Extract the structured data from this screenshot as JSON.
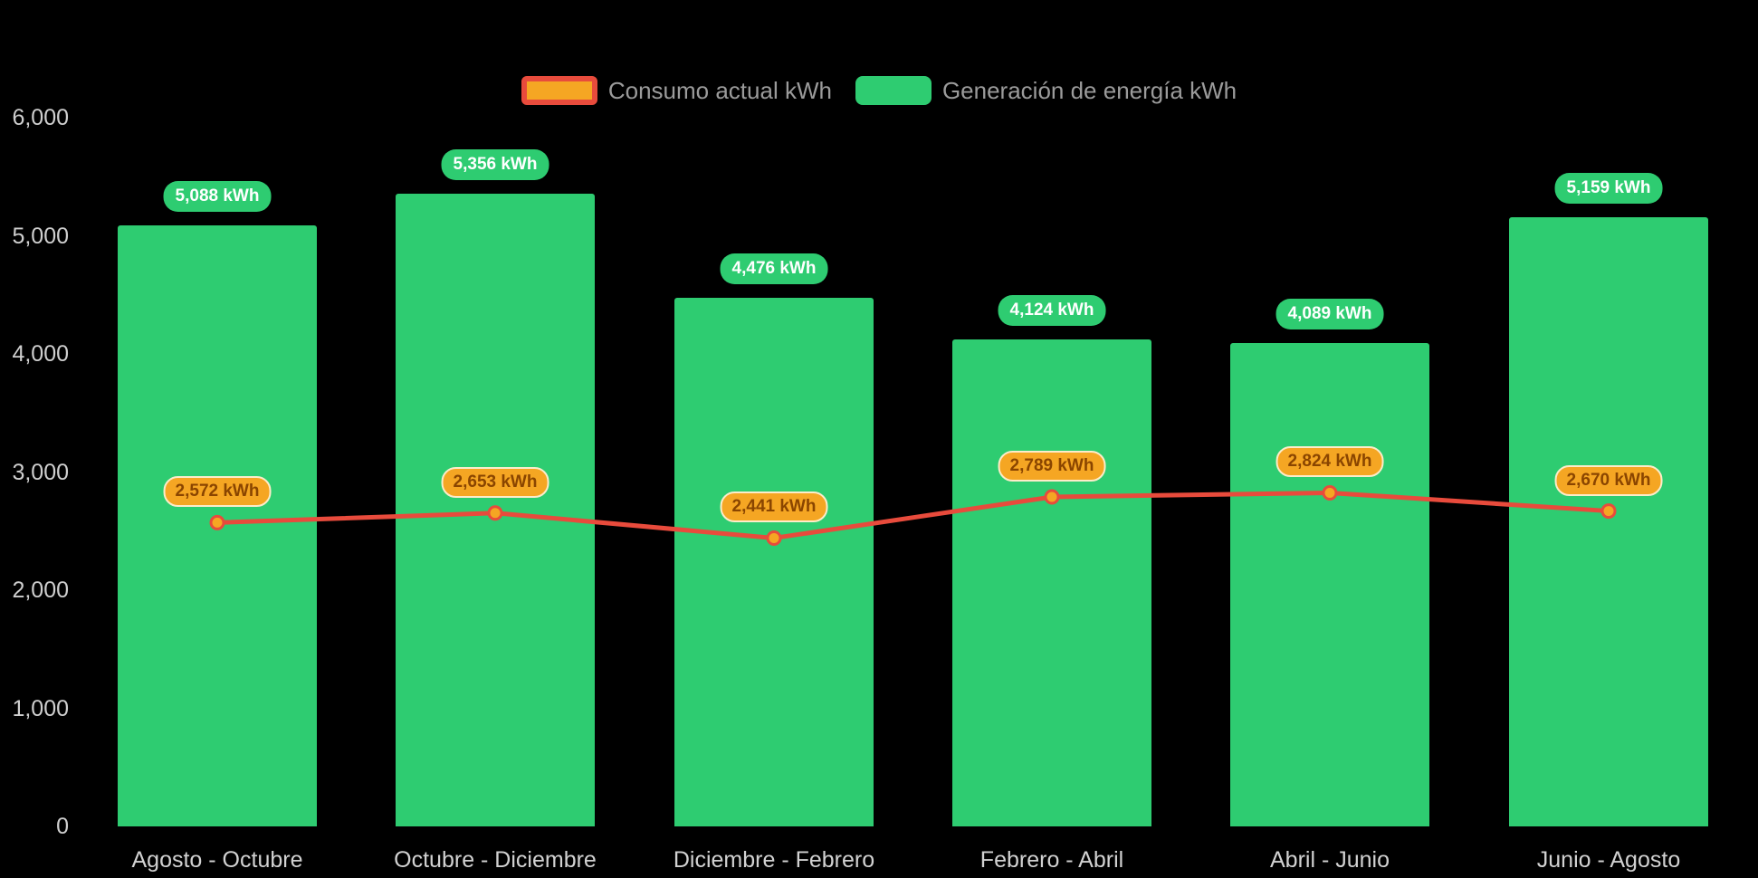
{
  "chart_data": {
    "type": "bar",
    "title": "",
    "categories": [
      "Agosto - Octubre",
      "Octubre - Diciembre",
      "Diciembre - Febrero",
      "Febrero - Abril",
      "Abril - Junio",
      "Junio - Agosto"
    ],
    "series": [
      {
        "name": "Consumo actual kWh",
        "type": "line",
        "color": "#e84b3c",
        "point_color": "#f5a623",
        "values": [
          2572,
          2653,
          2441,
          2789,
          2824,
          2670
        ],
        "labels": [
          "2,572 kWh",
          "2,653 kWh",
          "2,441 kWh",
          "2,789 kWh",
          "2,824 kWh",
          "2,670 kWh"
        ]
      },
      {
        "name": "Generación de energía kWh",
        "type": "bar",
        "color": "#2ecc71",
        "values": [
          5088,
          5356,
          4476,
          4124,
          4089,
          5159
        ],
        "labels": [
          "5,088 kWh",
          "5,356 kWh",
          "4,476 kWh",
          "4,124 kWh",
          "4,089 kWh",
          "5,159 kWh"
        ]
      }
    ],
    "ylim": [
      0,
      6000
    ],
    "ytick_step": 1000,
    "yticks": [
      "0",
      "1,000",
      "2,000",
      "3,000",
      "4,000",
      "5,000",
      "6,000"
    ],
    "grid": false,
    "legend_position": "top",
    "background": "#000000"
  },
  "colors": {
    "bar_fill": "#2ecc71",
    "bar_label_bg": "#2ecc71",
    "bar_label_text": "#ffffff",
    "line_stroke": "#e84b3c",
    "point_fill": "#f5a623",
    "line_label_bg": "#f5a623",
    "line_label_border": "#fcecca",
    "line_label_text": "#8a4500",
    "axis_text": "#cfcfcf",
    "legend_text": "#9b9b9b"
  }
}
